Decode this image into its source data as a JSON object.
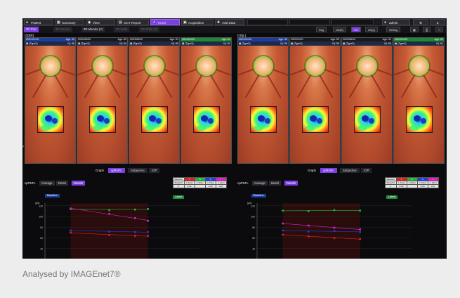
{
  "toolbar": {
    "patient": "Patient",
    "summary": "Summary",
    "view": "View",
    "oct_report": "OCT Report",
    "trend": "Trend",
    "acquisition": "Acquisition",
    "add_data": "Add Data",
    "user": "admin"
  },
  "subtabs": [
    "3D Disc",
    "3D Macula",
    "3D Macula (V)",
    "3D Wide",
    "3D Wide (V)"
  ],
  "right_buttons": [
    "Reg",
    "OD(R)",
    "OU",
    "OS(L)",
    "Setting"
  ],
  "eyes": {
    "od": "OD(R)",
    "os": "OS(L)"
  },
  "od_cards": [
    {
      "date": "2021/01/15",
      "age": "Age: 49",
      "type": "(Type2)",
      "iq": "IQ: 68",
      "hdr": "#1e3c9a"
    },
    {
      "date": "2022/06/09",
      "age": "Age: 50",
      "type": "(Type2)",
      "iq": "IQ: 64",
      "hdr": "#1a1a1a"
    },
    {
      "date": "2023/06/10",
      "age": "Age: 51",
      "type": "(Type2)",
      "iq": "IQ: 60",
      "hdr": "#1a1a1a"
    },
    {
      "date": "2024/01/25",
      "age": "Age: 51",
      "type": "(Type2)",
      "iq": "IQ: 62",
      "hdr": "#1c8a2e"
    }
  ],
  "os_cards": [
    {
      "date": "2021/01/15",
      "age": "Age: 49",
      "type": "(Type2)",
      "iq": "IQ: 56",
      "hdr": "#1e3c9a"
    },
    {
      "date": "2022/01/21",
      "age": "Age: 50",
      "type": "(Type2)",
      "iq": "IQ: 52",
      "hdr": "#1a1a1a"
    },
    {
      "date": "2023/06/10",
      "age": "Age: 51",
      "type": "(Type2)",
      "iq": "IQ: 54",
      "hdr": "#1a1a1a"
    },
    {
      "date": "2024/01/25",
      "age": "Age: 51",
      "type": "(Type2)",
      "iq": "IQ: 61",
      "hdr": "#1c8a2e"
    }
  ],
  "graph": {
    "label": "Graph",
    "tabs": [
      "cpRNFL",
      "Subjective",
      "IOP"
    ]
  },
  "panel": {
    "label": "cpRNFL",
    "tabs": [
      "Average",
      "Detail",
      "Detail2"
    ]
  },
  "stats": {
    "header": [
      "Baseline",
      "T",
      "S",
      "N",
      "I"
    ],
    "row1": [
      "Slope(T)",
      "-1.41μm",
      "-1.06μm",
      "-1.79μm",
      "-1.19μm"
    ],
    "row2": [
      "P",
      "0.03",
      "",
      "0.06",
      "0.07"
    ]
  },
  "chips": {
    "baseline": "Baseline",
    "latest": "Latest"
  },
  "axis": {
    "unit": "[μm]",
    "yticks": [
      "120",
      "100",
      "80",
      "60",
      "40",
      "20"
    ],
    "xunit": "[Age]",
    "ages": [
      "49",
      "50",
      "51",
      "52"
    ],
    "years": [
      "2021",
      "2022",
      "2023",
      "2024",
      "2025"
    ]
  },
  "chart_data": [
    {
      "type": "line",
      "ylabel": "[μm]",
      "xlabel": "[Age]",
      "ylim": [
        20,
        125
      ],
      "series": [
        {
          "color": "#1fb83a",
          "x": [
            49,
            50.5,
            51.5,
            52
          ],
          "values": [
            114,
            112,
            113,
            114
          ]
        },
        {
          "color": "#e020c0",
          "x": [
            49,
            50.5,
            51.5,
            52
          ],
          "values": [
            115,
            105,
            97,
            92
          ]
        },
        {
          "color": "#1f3fe0",
          "x": [
            49,
            50.5,
            51.5,
            52
          ],
          "values": [
            74,
            72,
            71,
            71
          ]
        },
        {
          "color": "#e02020",
          "x": [
            49,
            50.5,
            51.5,
            52
          ],
          "values": [
            70,
            65,
            64,
            64
          ]
        }
      ]
    },
    {
      "type": "line",
      "ylabel": "[μm]",
      "xlabel": "[Age]",
      "ylim": [
        20,
        125
      ],
      "series": [
        {
          "color": "#1fb83a",
          "x": [
            49,
            50,
            51,
            52
          ],
          "values": [
            111,
            110,
            112,
            111
          ]
        },
        {
          "color": "#e020c0",
          "x": [
            49,
            50,
            51,
            52
          ],
          "values": [
            87,
            83,
            79,
            76
          ]
        },
        {
          "color": "#1f3fe0",
          "x": [
            49,
            50,
            51,
            52
          ],
          "values": [
            74,
            72,
            73,
            71
          ]
        },
        {
          "color": "#e02020",
          "x": [
            49,
            50,
            51,
            52
          ],
          "values": [
            66,
            63,
            60,
            58
          ]
        }
      ]
    }
  ],
  "caption": "Analysed by IMAGEnet7®"
}
